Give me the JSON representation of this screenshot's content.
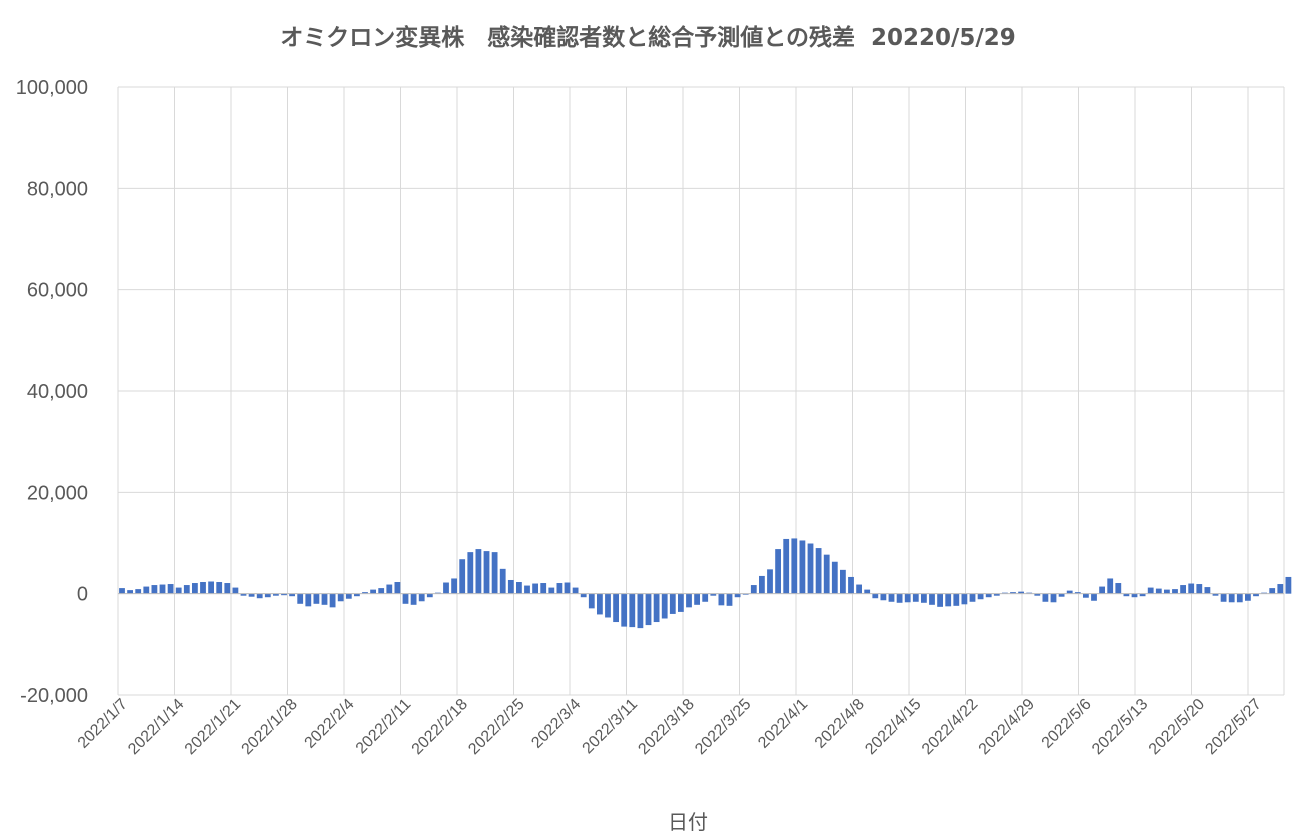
{
  "chart_data": {
    "type": "bar",
    "title": "オミクロン変異株　感染確認者数と総合予測値との残差  20220/5/29",
    "xlabel": "日付",
    "ylabel": "",
    "ylim": [
      -20000,
      100000
    ],
    "yticks": [
      "100,000",
      "80,000",
      "60,000",
      "40,000",
      "20,000",
      "0",
      "-20,000"
    ],
    "ytick_values": [
      100000,
      80000,
      60000,
      40000,
      20000,
      0,
      -20000
    ],
    "xtick_labels": [
      "2022/1/7",
      "2022/1/14",
      "2022/1/21",
      "2022/1/28",
      "2022/2/4",
      "2022/2/11",
      "2022/2/18",
      "2022/2/25",
      "2022/3/4",
      "2022/3/11",
      "2022/3/18",
      "2022/3/25",
      "2022/4/1",
      "2022/4/8",
      "2022/4/15",
      "2022/4/22",
      "2022/4/29",
      "2022/5/6",
      "2022/5/13",
      "2022/5/20",
      "2022/5/27"
    ],
    "grid": true,
    "legend": "none",
    "bar_color": "#4472C4",
    "series": [
      {
        "values": [
          1100,
          700,
          900,
          1400,
          1700,
          1800,
          1900,
          1200,
          1700,
          2100,
          2300,
          2400,
          2300,
          2100,
          1200,
          -400,
          -600,
          -900,
          -700,
          -400,
          -300,
          -500,
          -2000,
          -2500,
          -2000,
          -2200,
          -2700,
          -1500,
          -1000,
          -500,
          300,
          800,
          1100,
          1800,
          2300,
          -2000,
          -2200,
          -1500,
          -700,
          200,
          2200,
          3000,
          6800,
          8200,
          8800,
          8400,
          8200,
          4900,
          2700,
          2300,
          1600,
          2000,
          2100,
          1200,
          2100,
          2200,
          1200,
          -700,
          -2900,
          -4100,
          -4700,
          -5600,
          -6500,
          -6600,
          -6800,
          -6200,
          -5600,
          -4900,
          -4000,
          -3600,
          -2700,
          -2200,
          -1600,
          -400,
          -2300,
          -2400,
          -700,
          -200,
          1700,
          3500,
          4800,
          8800,
          10800,
          10900,
          10500,
          9900,
          9000,
          7700,
          6300,
          4700,
          3300,
          1800,
          800,
          -900,
          -1300,
          -1600,
          -1800,
          -1700,
          -1600,
          -1800,
          -2200,
          -2600,
          -2500,
          -2400,
          -2100,
          -1600,
          -1100,
          -700,
          -400,
          200,
          300,
          400,
          200,
          -400,
          -1600,
          -1700,
          -600,
          600,
          300,
          -800,
          -1400,
          1400,
          3000,
          2100,
          -500,
          -700,
          -500,
          1200,
          1000,
          800,
          900,
          1700,
          2000,
          1900,
          1300,
          -400,
          -1600,
          -1700,
          -1700,
          -1400,
          -500,
          200,
          1100,
          1900,
          3300
        ]
      }
    ]
  }
}
